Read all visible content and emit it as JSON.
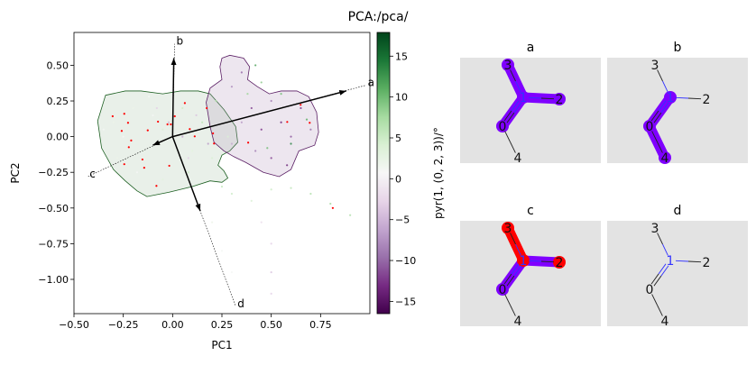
{
  "chart_data": {
    "type": "scatter",
    "title": "PCA:/pca/",
    "xlabel": "PC1",
    "ylabel": "PC2",
    "xlim": [
      -0.5,
      1.0
    ],
    "ylim": [
      -1.24,
      0.73
    ],
    "xticks": [
      -0.5,
      -0.25,
      0.0,
      0.25,
      0.5,
      0.75
    ],
    "xtick_labels": [
      "−0.50",
      "−0.25",
      "0.00",
      "0.25",
      "0.50",
      "0.75"
    ],
    "yticks": [
      0.5,
      0.25,
      0.0,
      -0.25,
      -0.5,
      -0.75,
      -1.0
    ],
    "ytick_labels": [
      "0.50",
      "0.25",
      "0.00",
      "−0.25",
      "−0.50",
      "−0.75",
      "−1.00"
    ],
    "grid": false,
    "colorbar": {
      "label": "pyr(1, (0, 2, 3))/°",
      "colormap": "PRGn",
      "range": [
        -16.5,
        17.9
      ],
      "ticks": [
        15,
        10,
        5,
        0,
        -5,
        -10,
        -15
      ],
      "tick_labels": [
        "15",
        "10",
        "5",
        "0",
        "−5",
        "−10",
        "−15"
      ],
      "colors": [
        "#40004b",
        "#762a83",
        "#9970ab",
        "#c2a5cf",
        "#e7d4e8",
        "#f7f7f7",
        "#d9f0d3",
        "#a6dba0",
        "#5aae61",
        "#1b7837",
        "#00441b"
      ]
    },
    "points_xyv": [
      [
        -0.3,
        0.1,
        2
      ],
      [
        -0.25,
        0.0,
        1
      ],
      [
        -0.2,
        0.2,
        2
      ],
      [
        -0.15,
        -0.1,
        3
      ],
      [
        -0.1,
        0.15,
        1
      ],
      [
        -0.05,
        0.05,
        4
      ],
      [
        0.0,
        -0.05,
        2
      ],
      [
        0.05,
        0.2,
        5
      ],
      [
        0.1,
        -0.1,
        3
      ],
      [
        0.15,
        0.1,
        6
      ],
      [
        0.2,
        -0.15,
        4
      ],
      [
        -0.35,
        0.05,
        1
      ],
      [
        -0.28,
        -0.15,
        2
      ],
      [
        -0.18,
        -0.25,
        1
      ],
      [
        -0.05,
        -0.3,
        3
      ],
      [
        0.08,
        -0.25,
        5
      ],
      [
        0.22,
        0.25,
        7
      ],
      [
        0.28,
        0.0,
        4
      ],
      [
        -0.12,
        0.28,
        1
      ],
      [
        0.02,
        0.3,
        2
      ],
      [
        -0.02,
        0.1,
        -5
      ],
      [
        0.05,
        0.0,
        -6
      ],
      [
        0.12,
        0.15,
        -4
      ],
      [
        0.18,
        -0.05,
        -7
      ],
      [
        0.08,
        -0.15,
        -3
      ],
      [
        -0.08,
        0.2,
        -3
      ],
      [
        0.3,
        0.35,
        -8
      ],
      [
        0.35,
        0.45,
        -10
      ],
      [
        0.4,
        0.2,
        -12
      ],
      [
        0.45,
        0.05,
        -13
      ],
      [
        0.5,
        0.25,
        -9
      ],
      [
        0.55,
        0.1,
        -14
      ],
      [
        0.6,
        0.0,
        -11
      ],
      [
        0.65,
        0.2,
        -13
      ],
      [
        0.7,
        0.05,
        -10
      ],
      [
        0.5,
        -0.15,
        -12
      ],
      [
        0.42,
        -0.1,
        -9
      ],
      [
        0.35,
        0.1,
        -7
      ],
      [
        0.58,
        -0.2,
        -14
      ],
      [
        0.3,
        -0.05,
        -6
      ],
      [
        0.42,
        0.5,
        12
      ],
      [
        0.45,
        0.38,
        9
      ],
      [
        0.55,
        0.3,
        10
      ],
      [
        0.6,
        -0.05,
        14
      ],
      [
        0.68,
        0.12,
        11
      ],
      [
        0.38,
        0.3,
        8
      ],
      [
        0.48,
        -0.08,
        10
      ],
      [
        0.25,
        -0.35,
        6
      ],
      [
        0.3,
        -0.4,
        5
      ],
      [
        0.4,
        -0.45,
        4
      ],
      [
        0.5,
        -0.37,
        5
      ],
      [
        0.6,
        -0.36,
        6
      ],
      [
        0.7,
        -0.4,
        7
      ],
      [
        0.8,
        -0.47,
        8
      ],
      [
        0.9,
        -0.55,
        7
      ],
      [
        0.45,
        -0.6,
        -2
      ],
      [
        0.5,
        -0.75,
        -3
      ],
      [
        0.5,
        -0.95,
        -4
      ],
      [
        0.5,
        -1.1,
        -3
      ],
      [
        0.2,
        -0.6,
        2
      ],
      [
        0.25,
        -0.8,
        1
      ],
      [
        0.3,
        -0.95,
        1
      ]
    ],
    "highlight_points": {
      "color": "#ff0000",
      "xy": [
        [
          -0.304,
          0.143
        ],
        [
          -0.245,
          0.16
        ],
        [
          -0.226,
          0.097
        ],
        [
          -0.258,
          0.04
        ],
        [
          -0.21,
          -0.027
        ],
        [
          -0.222,
          -0.074
        ],
        [
          -0.126,
          0.044
        ],
        [
          -0.074,
          0.105
        ],
        [
          -0.026,
          0.086
        ],
        [
          -0.009,
          0.086
        ],
        [
          0.011,
          0.143
        ],
        [
          0.062,
          0.235
        ],
        [
          0.087,
          0.053
        ],
        [
          0.112,
          0.002
        ],
        [
          0.173,
          0.2
        ],
        [
          0.205,
          0.023
        ],
        [
          0.21,
          -0.048
        ],
        [
          -0.153,
          -0.16
        ],
        [
          -0.144,
          -0.218
        ],
        [
          -0.245,
          -0.193
        ],
        [
          -0.017,
          -0.204
        ],
        [
          -0.082,
          -0.345
        ],
        [
          0.383,
          -0.042
        ],
        [
          0.581,
          0.103
        ],
        [
          0.649,
          0.223
        ],
        [
          0.695,
          0.097
        ],
        [
          0.812,
          -0.5
        ]
      ]
    },
    "regions": [
      {
        "edge": "#1b5e20",
        "fill": "#a8c4a8",
        "polygon": [
          [
            -0.34,
            0.29
          ],
          [
            -0.24,
            0.32
          ],
          [
            -0.16,
            0.32
          ],
          [
            -0.05,
            0.3
          ],
          [
            0.04,
            0.32
          ],
          [
            0.13,
            0.32
          ],
          [
            0.19,
            0.3
          ],
          [
            0.26,
            0.19
          ],
          [
            0.32,
            0.07
          ],
          [
            0.33,
            -0.04
          ],
          [
            0.29,
            -0.1
          ],
          [
            0.25,
            -0.13
          ],
          [
            0.23,
            -0.2
          ],
          [
            0.26,
            -0.24
          ],
          [
            0.28,
            -0.29
          ],
          [
            0.25,
            -0.32
          ],
          [
            0.19,
            -0.31
          ],
          [
            0.1,
            -0.35
          ],
          [
            -0.02,
            -0.39
          ],
          [
            -0.13,
            -0.42
          ],
          [
            -0.18,
            -0.38
          ],
          [
            -0.24,
            -0.31
          ],
          [
            -0.3,
            -0.23
          ],
          [
            -0.36,
            -0.08
          ],
          [
            -0.38,
            0.11
          ]
        ]
      },
      {
        "edge": "#5a1e64",
        "fill": "#b89cc0",
        "polygon": [
          [
            0.25,
            0.55
          ],
          [
            0.29,
            0.57
          ],
          [
            0.36,
            0.55
          ],
          [
            0.39,
            0.49
          ],
          [
            0.38,
            0.4
          ],
          [
            0.43,
            0.35
          ],
          [
            0.49,
            0.3
          ],
          [
            0.55,
            0.32
          ],
          [
            0.63,
            0.32
          ],
          [
            0.69,
            0.28
          ],
          [
            0.73,
            0.17
          ],
          [
            0.74,
            0.03
          ],
          [
            0.72,
            -0.06
          ],
          [
            0.64,
            -0.1
          ],
          [
            0.6,
            -0.23
          ],
          [
            0.54,
            -0.28
          ],
          [
            0.46,
            -0.25
          ],
          [
            0.37,
            -0.18
          ],
          [
            0.31,
            -0.14
          ],
          [
            0.26,
            -0.1
          ],
          [
            0.21,
            -0.04
          ],
          [
            0.19,
            0.07
          ],
          [
            0.17,
            0.24
          ],
          [
            0.19,
            0.34
          ],
          [
            0.25,
            0.4
          ],
          [
            0.24,
            0.49
          ]
        ]
      }
    ],
    "loading_vectors": [
      {
        "label": "a",
        "arrow": [
          0.88,
          0.32
        ],
        "line_end": [
          0.98,
          0.36
        ]
      },
      {
        "label": "b",
        "arrow": [
          0.006,
          0.55
        ],
        "line_end": [
          0.01,
          0.65
        ]
      },
      {
        "label": "c",
        "arrow": [
          -0.1,
          -0.06
        ],
        "line_end": [
          -0.43,
          -0.28
        ]
      },
      {
        "label": "d",
        "arrow": [
          0.14,
          -0.52
        ],
        "line_end": [
          0.32,
          -1.19
        ]
      }
    ]
  },
  "molecules": {
    "highlight_colors": {
      "purple": "#7f00ff",
      "red": "#ff0000"
    },
    "atom_labels": [
      "0",
      "1",
      "2",
      "3",
      "4"
    ],
    "panels": [
      {
        "title": "a",
        "atoms": {
          "0": "purple",
          "1": "purple",
          "2": "purple",
          "3": "purple"
        },
        "bonds": {
          "1-3": "purple",
          "1-2": "purple",
          "0-1": "purple"
        }
      },
      {
        "title": "b",
        "atoms": {
          "1": "purple",
          "0": "purple",
          "4": "purple"
        },
        "bonds": {
          "0-1": "purple",
          "0-4": "purple"
        }
      },
      {
        "title": "c",
        "atoms": {
          "0": "purple",
          "1": "red",
          "2": "red",
          "3": "red"
        },
        "bonds": {
          "0-1": "purple",
          "1-2": "purple",
          "1-3": "red"
        }
      },
      {
        "title": "d",
        "atoms": {},
        "bonds": {}
      }
    ]
  }
}
